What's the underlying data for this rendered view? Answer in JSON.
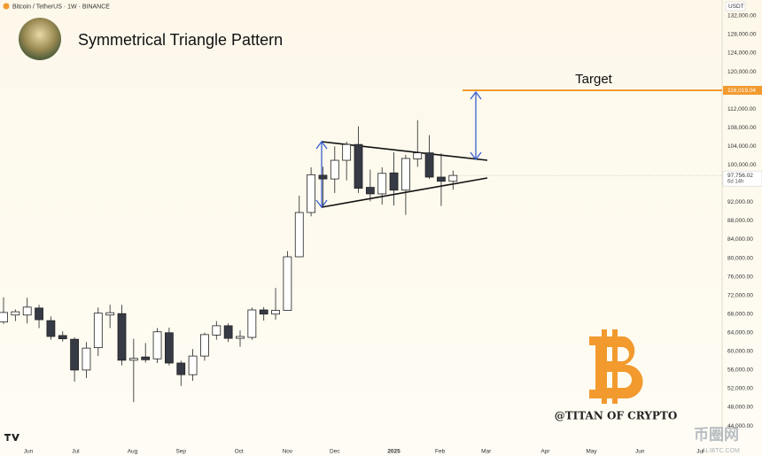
{
  "chart_data": {
    "type": "candlestick",
    "header": "Bitcoin / TetherUS · 1W · BINANCE",
    "title": "Symmetrical Triangle Pattern",
    "currency": "USDT",
    "categories": [
      null,
      null,
      null,
      null,
      null,
      null,
      null,
      null,
      null,
      null,
      null,
      null,
      null,
      null,
      null,
      null,
      null,
      null,
      null,
      null,
      null,
      null,
      null,
      null,
      null,
      null,
      null,
      null,
      null,
      null,
      null,
      null,
      null,
      null,
      null,
      null,
      null,
      null,
      null
    ],
    "open": [
      66300,
      67800,
      67800,
      69300,
      66600,
      63400,
      62600,
      56000,
      60800,
      67800,
      68100,
      58100,
      58800,
      58400,
      64000,
      57500,
      55000,
      59000,
      63500,
      65500,
      62800,
      63000,
      68900,
      68000,
      68800,
      80300,
      89800,
      97800,
      97000,
      101000,
      104400,
      95200,
      93800,
      98300,
      94600,
      101300,
      102600,
      97400,
      96500
    ],
    "high": [
      71600,
      69000,
      71500,
      70000,
      67500,
      64300,
      63000,
      62000,
      69400,
      70000,
      70000,
      62700,
      61800,
      65000,
      65100,
      58000,
      60500,
      64000,
      66500,
      66000,
      64500,
      69400,
      69500,
      73600,
      81500,
      93400,
      99500,
      99600,
      104000,
      105000,
      108300,
      99000,
      99500,
      102700,
      102200,
      109600,
      106400,
      102500,
      98800
    ],
    "low": [
      65900,
      66500,
      66000,
      65000,
      62500,
      62100,
      53500,
      54300,
      59000,
      65000,
      57000,
      49100,
      57600,
      57500,
      57000,
      52600,
      53700,
      58000,
      62500,
      62000,
      61000,
      62500,
      66600,
      66800,
      68800,
      80200,
      89000,
      90800,
      94000,
      96700,
      94000,
      92200,
      91500,
      91300,
      89300,
      99600,
      97000,
      91200,
      94700
    ],
    "close": [
      68350,
      68500,
      69500,
      66800,
      63200,
      62700,
      56000,
      60700,
      68200,
      68300,
      58100,
      58500,
      58200,
      64200,
      57500,
      55000,
      59000,
      63600,
      65500,
      62800,
      63200,
      68900,
      68000,
      68800,
      80300,
      89800,
      97900,
      97000,
      101000,
      104400,
      95000,
      93800,
      98200,
      94600,
      101400,
      102600,
      97400,
      96500,
      97756.02
    ],
    "up_color": "#ffffff",
    "down_color": "#363a45",
    "ylim": [
      40400,
      135400
    ],
    "yticks": [
      {
        "value": 44000,
        "label": "44,000.00"
      },
      {
        "value": 48000,
        "label": "48,000.00"
      },
      {
        "value": 52000,
        "label": "52,000.00"
      },
      {
        "value": 56000,
        "label": "56,000.00"
      },
      {
        "value": 60000,
        "label": "60,000.00"
      },
      {
        "value": 64000,
        "label": "64,000.00"
      },
      {
        "value": 68000,
        "label": "68,000.00"
      },
      {
        "value": 72000,
        "label": "72,000.00"
      },
      {
        "value": 76000,
        "label": "76,000.00"
      },
      {
        "value": 80000,
        "label": "80,000.00"
      },
      {
        "value": 84000,
        "label": "84,000.00"
      },
      {
        "value": 88000,
        "label": "88,000.00"
      },
      {
        "value": 92000,
        "label": "92,000.00"
      },
      {
        "value": 96000,
        "label": "96,000.00"
      },
      {
        "value": 100000,
        "label": "100,000.00"
      },
      {
        "value": 104000,
        "label": "104,000.00"
      },
      {
        "value": 108000,
        "label": "108,000.00"
      },
      {
        "value": 112000,
        "label": "112,000.00"
      },
      {
        "value": 116000,
        "label": "116,000.00"
      },
      {
        "value": 120000,
        "label": "120,000.00"
      },
      {
        "value": 124000,
        "label": "124,000.00"
      },
      {
        "value": 128000,
        "label": "128,000.00"
      },
      {
        "value": 132000,
        "label": "132,000.00"
      }
    ],
    "xticks": [
      {
        "value": 2.1,
        "label": "Jun"
      },
      {
        "value": 6.1,
        "label": "Jul"
      },
      {
        "value": 10.9,
        "label": "Aug"
      },
      {
        "value": 15,
        "label": "Sep"
      },
      {
        "value": 19.9,
        "label": "Oct"
      },
      {
        "value": 24,
        "label": "Nov"
      },
      {
        "value": 28,
        "label": "Dec"
      },
      {
        "value": 33,
        "label": "2025"
      },
      {
        "value": 36.9,
        "label": "Feb"
      },
      {
        "value": 40.8,
        "label": "Mar"
      },
      {
        "value": 45.8,
        "label": "Apr"
      },
      {
        "value": 49.7,
        "label": "May"
      },
      {
        "value": 53.8,
        "label": "Jun"
      },
      {
        "value": 58.9,
        "label": "Jul"
      }
    ],
    "price_lines": [
      {
        "name": "Target",
        "value": 116019.04,
        "label": "116,019.04",
        "color": "#f29a2e"
      }
    ],
    "last_price": {
      "value": 97756.02,
      "label": "97,756.02",
      "countdown": "6d 14h"
    },
    "watermark": "@TITAN OF CRYPTO",
    "site_watermark": [
      "币圈网",
      "ALIBTC.COM"
    ]
  }
}
